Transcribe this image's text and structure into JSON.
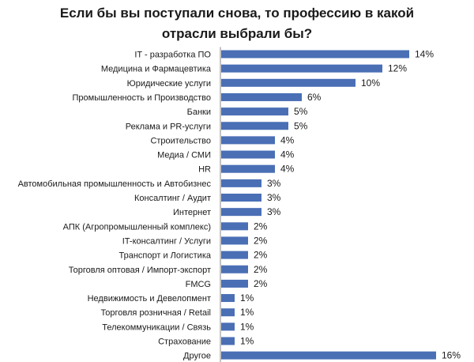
{
  "chart_data": {
    "type": "bar",
    "orientation": "horizontal",
    "title_line1": "Если бы вы поступали снова, то профессию в какой",
    "title_line2": "отрасли выбрали бы?",
    "value_suffix": "%",
    "bar_color": "#4a6fb5",
    "grid": false,
    "legend": "none",
    "xlim": [
      0,
      16
    ],
    "categories": [
      "IT - разработка ПО",
      "Медицина и Фармацевтика",
      "Юридические услуги",
      "Промышленность и Производство",
      "Банки",
      "Реклама и PR-услуги",
      "Строительство",
      "Медиа / СМИ",
      "HR",
      "Автомобильная промышленность и Автобизнес",
      "Консалтинг / Аудит",
      "Интернет",
      "АПК (Агропромышленный комплекс)",
      "IT-консалтинг / Услуги",
      "Транспорт и Логистика",
      "Торговля оптовая / Импорт-экспорт",
      "FMCG",
      "Недвижимость и Девелопмент",
      "Торговля розничная / Retail",
      "Телекоммуникации / Связь",
      "Страхование",
      "Другое"
    ],
    "values": [
      14,
      12,
      10,
      6,
      5,
      5,
      4,
      4,
      4,
      3,
      3,
      3,
      2,
      2,
      2,
      2,
      2,
      1,
      1,
      1,
      1,
      16
    ]
  }
}
